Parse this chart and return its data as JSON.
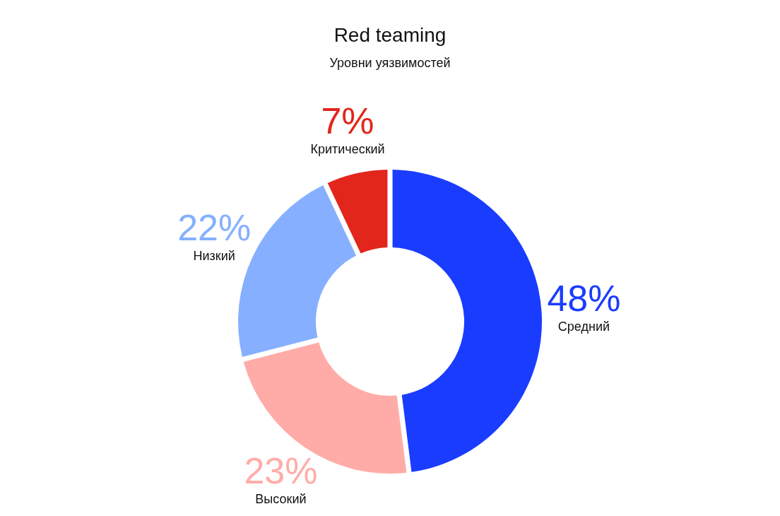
{
  "chart_data": {
    "type": "donut",
    "title": "Red teaming",
    "subtitle": "Уровни уязвимостей",
    "categories": [
      "Средний",
      "Высокий",
      "Низкий",
      "Критический"
    ],
    "values": [
      48,
      23,
      22,
      7
    ],
    "colors": [
      "#1a3cff",
      "#ffaca8",
      "#86b0ff",
      "#e2261c"
    ],
    "value_labels": [
      "48%",
      "23%",
      "22%",
      "7%"
    ]
  }
}
